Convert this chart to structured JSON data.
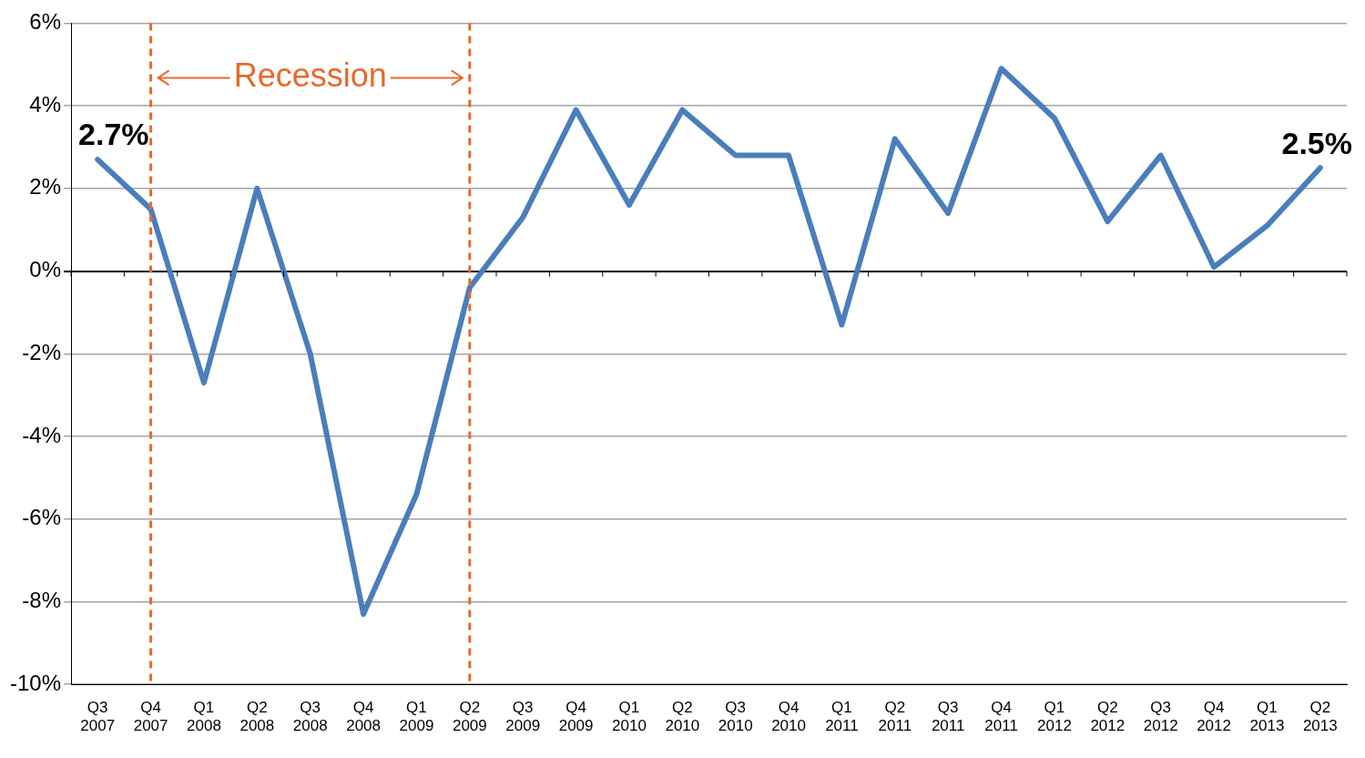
{
  "chart_data": {
    "type": "line",
    "categories": [
      "Q3 2007",
      "Q4 2007",
      "Q1 2008",
      "Q2 2008",
      "Q3 2008",
      "Q4 2008",
      "Q1 2009",
      "Q2 2009",
      "Q3 2009",
      "Q4 2009",
      "Q1 2010",
      "Q2 2010",
      "Q3 2010",
      "Q4 2010",
      "Q1 2011",
      "Q2 2011",
      "Q3 2011",
      "Q4 2011",
      "Q1 2012",
      "Q2 2012",
      "Q3 2012",
      "Q4 2012",
      "Q1 2013",
      "Q2 2013"
    ],
    "values": [
      2.7,
      1.5,
      -2.7,
      2.0,
      -2.0,
      -8.3,
      -5.4,
      -0.4,
      1.3,
      3.9,
      1.6,
      3.9,
      2.8,
      2.8,
      -1.3,
      3.2,
      1.4,
      4.9,
      3.7,
      1.2,
      2.8,
      0.1,
      1.1,
      2.5
    ],
    "value_labels": [
      "2.7%",
      null,
      null,
      null,
      null,
      null,
      null,
      null,
      null,
      null,
      null,
      null,
      null,
      null,
      null,
      null,
      null,
      null,
      null,
      null,
      null,
      null,
      null,
      "2.5%"
    ],
    "color": "#4a7ebb",
    "ylim": [
      -10,
      6
    ],
    "yticks": [
      {
        "value": -10,
        "label": "-10%"
      },
      {
        "value": -8,
        "label": "-8%"
      },
      {
        "value": -6,
        "label": "-6%"
      },
      {
        "value": -4,
        "label": "-4%"
      },
      {
        "value": -2,
        "label": "-2%"
      },
      {
        "value": 0,
        "label": "0%"
      },
      {
        "value": 2,
        "label": "2%"
      },
      {
        "value": 4,
        "label": "4%"
      },
      {
        "value": 6,
        "label": "6%"
      }
    ],
    "ref_lines": [
      {
        "axis": "x",
        "value": "Q4 2007",
        "color": "#e8692a",
        "line_style": "dashed"
      },
      {
        "axis": "x",
        "value": "Q2 2009",
        "color": "#e8692a",
        "line_style": "dashed"
      }
    ],
    "annotations": [
      "Recession"
    ],
    "grid": "y",
    "legend": false,
    "marker": "none",
    "line_style": "solid"
  }
}
